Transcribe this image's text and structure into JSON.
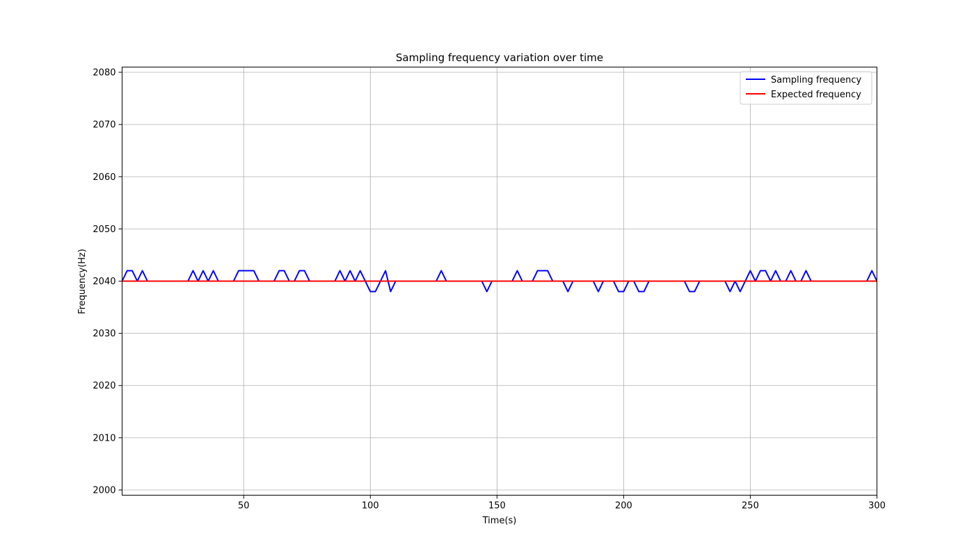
{
  "chart_data": {
    "type": "line",
    "title": "Sampling frequency variation over time",
    "xlabel": "Time(s)",
    "ylabel": "Frequency(Hz)",
    "xlim": [
      2,
      300
    ],
    "ylim": [
      1999,
      2081
    ],
    "xticks": [
      50,
      100,
      150,
      200,
      250,
      300
    ],
    "yticks": [
      2000,
      2010,
      2020,
      2030,
      2040,
      2050,
      2060,
      2070,
      2080
    ],
    "grid": true,
    "legend_position": "top-right",
    "series": [
      {
        "name": "Sampling frequency",
        "color": "#0000ff",
        "x": [
          2,
          4,
          6,
          8,
          10,
          12,
          14,
          16,
          18,
          20,
          22,
          24,
          26,
          28,
          30,
          32,
          34,
          36,
          38,
          40,
          42,
          44,
          46,
          48,
          50,
          52,
          54,
          56,
          58,
          60,
          62,
          64,
          66,
          68,
          70,
          72,
          74,
          76,
          78,
          80,
          82,
          84,
          86,
          88,
          90,
          92,
          94,
          96,
          98,
          100,
          102,
          104,
          106,
          108,
          110,
          112,
          114,
          116,
          118,
          120,
          122,
          124,
          126,
          128,
          130,
          132,
          134,
          136,
          138,
          140,
          142,
          144,
          146,
          148,
          150,
          152,
          154,
          156,
          158,
          160,
          162,
          164,
          166,
          168,
          170,
          172,
          174,
          176,
          178,
          180,
          182,
          184,
          186,
          188,
          190,
          192,
          194,
          196,
          198,
          200,
          202,
          204,
          206,
          208,
          210,
          212,
          214,
          216,
          218,
          220,
          222,
          224,
          226,
          228,
          230,
          232,
          234,
          236,
          238,
          240,
          242,
          244,
          246,
          248,
          250,
          252,
          254,
          256,
          258,
          260,
          262,
          264,
          266,
          268,
          270,
          272,
          274,
          276,
          278,
          280,
          282,
          284,
          286,
          288,
          290,
          292,
          294,
          296,
          298,
          300
        ],
        "y": [
          2040,
          2042,
          2042,
          2040,
          2042,
          2040,
          2040,
          2040,
          2040,
          2040,
          2040,
          2040,
          2040,
          2040,
          2042,
          2040,
          2042,
          2040,
          2042,
          2040,
          2040,
          2040,
          2040,
          2042,
          2042,
          2042,
          2042,
          2040,
          2040,
          2040,
          2040,
          2042,
          2042,
          2040,
          2040,
          2042,
          2042,
          2040,
          2040,
          2040,
          2040,
          2040,
          2040,
          2042,
          2040,
          2042,
          2040,
          2042,
          2040,
          2038,
          2038,
          2040,
          2042,
          2038,
          2040,
          2040,
          2040,
          2040,
          2040,
          2040,
          2040,
          2040,
          2040,
          2042,
          2040,
          2040,
          2040,
          2040,
          2040,
          2040,
          2040,
          2040,
          2038,
          2040,
          2040,
          2040,
          2040,
          2040,
          2042,
          2040,
          2040,
          2040,
          2042,
          2042,
          2042,
          2040,
          2040,
          2040,
          2038,
          2040,
          2040,
          2040,
          2040,
          2040,
          2038,
          2040,
          2040,
          2040,
          2038,
          2038,
          2040,
          2040,
          2038,
          2038,
          2040,
          2040,
          2040,
          2040,
          2040,
          2040,
          2040,
          2040,
          2038,
          2038,
          2040,
          2040,
          2040,
          2040,
          2040,
          2040,
          2038,
          2040,
          2038,
          2040,
          2042,
          2040,
          2042,
          2042,
          2040,
          2042,
          2040,
          2040,
          2042,
          2040,
          2040,
          2042,
          2040,
          2040,
          2040,
          2040,
          2040,
          2040,
          2040,
          2040,
          2040,
          2040,
          2040,
          2040,
          2042,
          2040
        ]
      },
      {
        "name": "Expected frequency",
        "color": "#ff0000",
        "x": [
          2,
          300
        ],
        "y": [
          2040,
          2040
        ]
      }
    ]
  }
}
